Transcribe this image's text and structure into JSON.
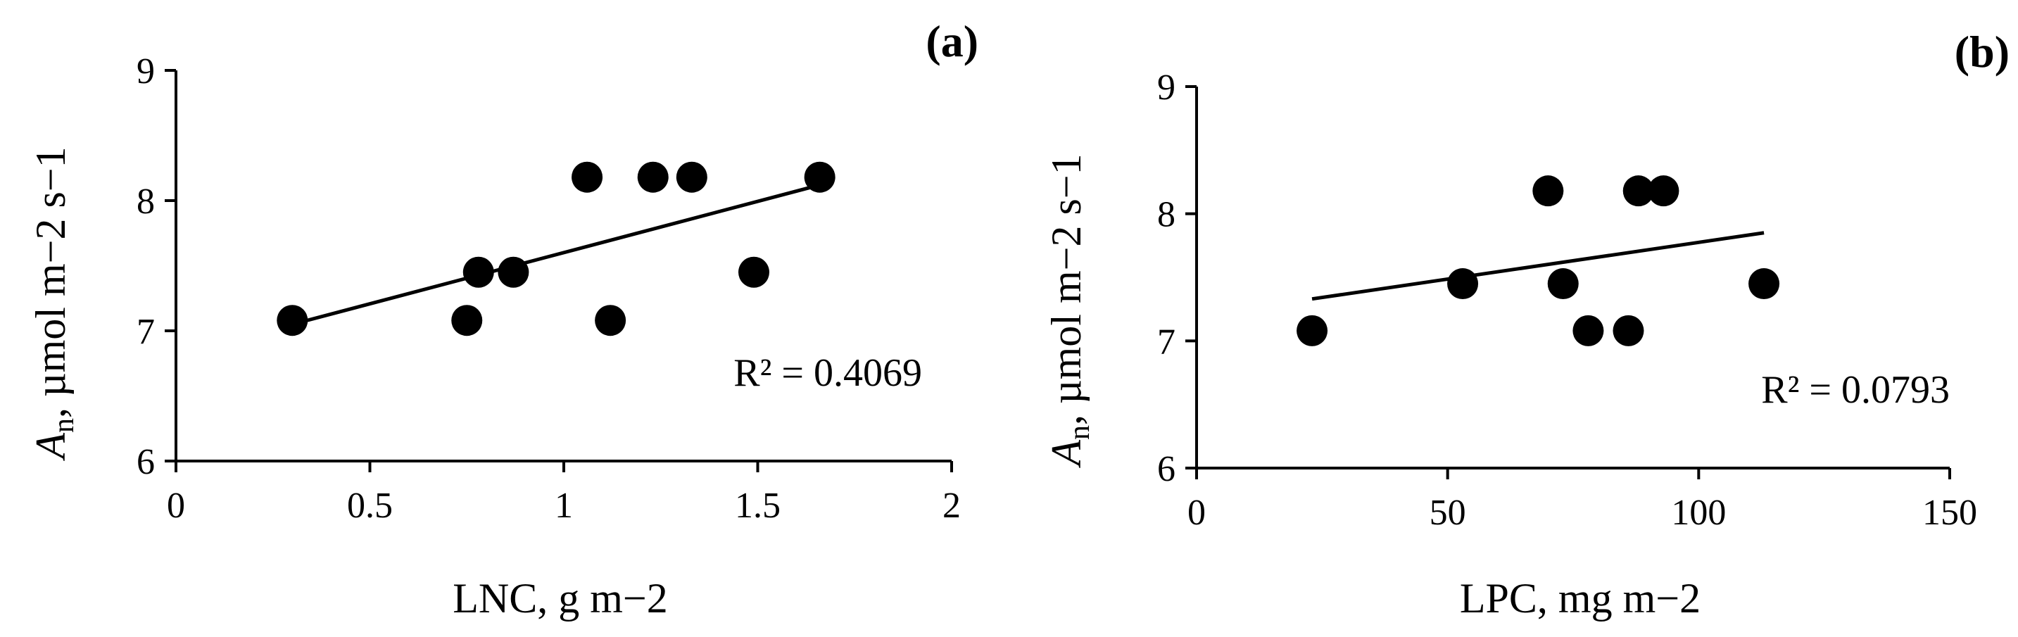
{
  "chart_data": [
    {
      "type": "scatter",
      "panel_label": "(a)",
      "xlabel": "LNC, g m−2",
      "ylabel_main": "A",
      "ylabel_sub": "n",
      "ylabel_rest": ", µmol m−2 s−1",
      "xlim": [
        0,
        2
      ],
      "ylim": [
        6,
        9
      ],
      "xticks": [
        0,
        0.5,
        1,
        1.5,
        2
      ],
      "xtick_labels": [
        "0",
        "0.5",
        "1",
        "1.5",
        "2"
      ],
      "yticks": [
        6,
        7,
        8,
        9
      ],
      "ytick_labels": [
        "6",
        "7",
        "8",
        "9"
      ],
      "points": [
        {
          "x": 0.3,
          "y": 7.08
        },
        {
          "x": 0.75,
          "y": 7.08
        },
        {
          "x": 0.78,
          "y": 7.45
        },
        {
          "x": 0.87,
          "y": 7.45
        },
        {
          "x": 1.06,
          "y": 8.18
        },
        {
          "x": 1.12,
          "y": 7.08
        },
        {
          "x": 1.23,
          "y": 8.18
        },
        {
          "x": 1.33,
          "y": 8.18
        },
        {
          "x": 1.49,
          "y": 7.45
        },
        {
          "x": 1.66,
          "y": 8.18
        }
      ],
      "trendline": {
        "x": [
          0.3,
          1.66
        ],
        "y": [
          7.05,
          8.12
        ]
      },
      "r2_text": "R² = 0.4069",
      "legend": "none",
      "grid": false
    },
    {
      "type": "scatter",
      "panel_label": "(b)",
      "xlabel": "LPC, mg m−2",
      "ylabel_main": "A",
      "ylabel_sub": "n",
      "ylabel_rest": ", µmol m−2 s−1",
      "xlim": [
        0,
        150
      ],
      "ylim": [
        6,
        9
      ],
      "xticks": [
        0,
        50,
        100,
        150
      ],
      "xtick_labels": [
        "0",
        "50",
        "100",
        "150"
      ],
      "yticks": [
        6,
        7,
        8,
        9
      ],
      "ytick_labels": [
        "6",
        "7",
        "8",
        "9"
      ],
      "points": [
        {
          "x": 23,
          "y": 7.08
        },
        {
          "x": 53,
          "y": 7.45
        },
        {
          "x": 70,
          "y": 8.18
        },
        {
          "x": 73,
          "y": 7.45
        },
        {
          "x": 78,
          "y": 7.08
        },
        {
          "x": 86,
          "y": 7.08
        },
        {
          "x": 88,
          "y": 8.18
        },
        {
          "x": 93,
          "y": 8.18
        },
        {
          "x": 113,
          "y": 7.45
        }
      ],
      "trendline": {
        "x": [
          23,
          113
        ],
        "y": [
          7.33,
          7.85
        ]
      },
      "r2_text": "R² = 0.0793",
      "legend": "none",
      "grid": false
    }
  ]
}
